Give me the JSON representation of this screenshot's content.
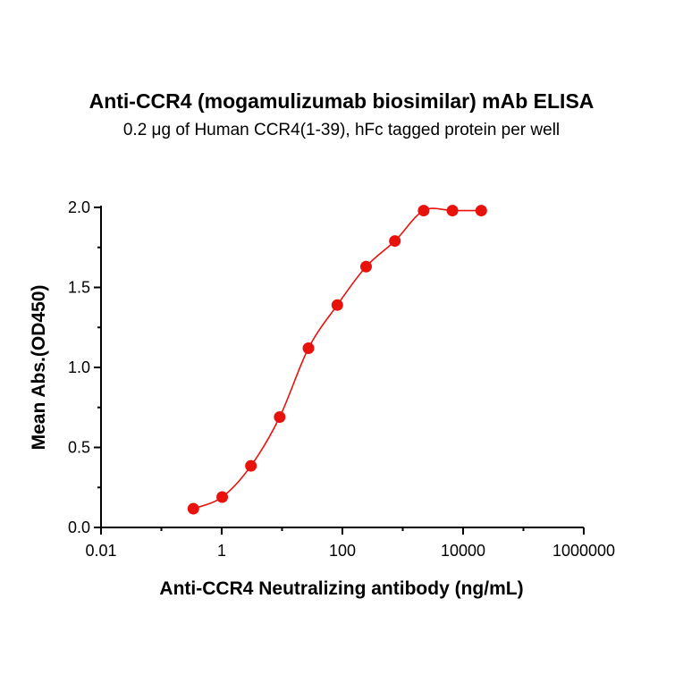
{
  "chart_data": {
    "type": "scatter",
    "title": "Anti-CCR4 (mogamulizumab biosimilar) mAb ELISA",
    "subtitle": "0.2 μg of Human CCR4(1-39), hFc tagged protein per well",
    "xlabel": "Anti-CCR4 Neutralizing antibody (ng/mL)",
    "ylabel": "Mean Abs.(OD450)",
    "xscale": "log",
    "xlim": [
      0.01,
      1000000
    ],
    "ylim": [
      0,
      2.0
    ],
    "xticks": [
      "0.01",
      "1",
      "100",
      "10000",
      "1000000"
    ],
    "yticks": [
      "0.0",
      "0.5",
      "1.0",
      "1.5",
      "2.0"
    ],
    "grid": false,
    "color": "#e8120c",
    "series": [
      {
        "x": [
          0.339,
          1.02,
          3.05,
          9.14,
          27.4,
          82.3,
          247,
          741,
          2222,
          6667,
          20000
        ],
        "y": [
          0.117,
          0.19,
          0.385,
          0.69,
          1.12,
          1.39,
          1.63,
          1.79,
          1.98,
          1.98,
          1.98
        ],
        "fit": "sigmoidal curve"
      }
    ]
  }
}
